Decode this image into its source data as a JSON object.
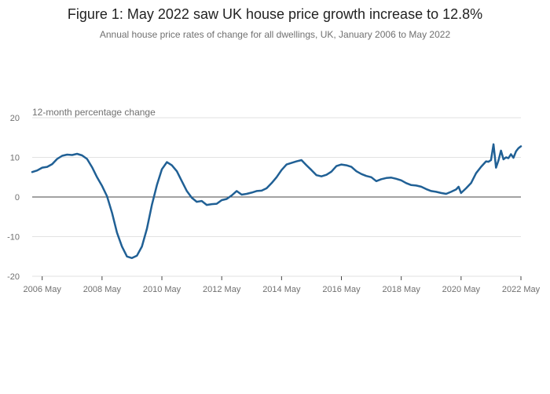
{
  "chart_data": {
    "type": "line",
    "title": "Figure 1: May 2022 saw UK house price growth increase to 12.8%",
    "subtitle": "Annual house price rates of change for all dwellings, UK, January 2006 to May 2022",
    "ylabel": "12-month percentage change",
    "ylim": [
      -20,
      20
    ],
    "yticks": [
      "20",
      "10",
      "0",
      "-10",
      "-20"
    ],
    "xticks": [
      "2006 May",
      "2008 May",
      "2010 May",
      "2012 May",
      "2014 May",
      "2016 May",
      "2018 May",
      "2020 May",
      "2022 May"
    ],
    "xrange": [
      "2006-01",
      "2022-05"
    ],
    "grid": true,
    "line_color": "#206095",
    "series": [
      {
        "points": [
          [
            "2006-01",
            6.3
          ],
          [
            "2006-03",
            6.7
          ],
          [
            "2006-05",
            7.4
          ],
          [
            "2006-07",
            7.6
          ],
          [
            "2006-09",
            8.3
          ],
          [
            "2006-11",
            9.6
          ],
          [
            "2007-01",
            10.4
          ],
          [
            "2007-03",
            10.7
          ],
          [
            "2007-05",
            10.6
          ],
          [
            "2007-07",
            10.9
          ],
          [
            "2007-09",
            10.5
          ],
          [
            "2007-11",
            9.6
          ],
          [
            "2008-01",
            7.5
          ],
          [
            "2008-03",
            5.0
          ],
          [
            "2008-05",
            2.8
          ],
          [
            "2008-07",
            0.2
          ],
          [
            "2008-09",
            -4.0
          ],
          [
            "2008-11",
            -9.0
          ],
          [
            "2009-01",
            -12.5
          ],
          [
            "2009-03",
            -15.0
          ],
          [
            "2009-05",
            -15.4
          ],
          [
            "2009-07",
            -14.8
          ],
          [
            "2009-09",
            -12.5
          ],
          [
            "2009-11",
            -8.0
          ],
          [
            "2010-01",
            -2.0
          ],
          [
            "2010-03",
            3.0
          ],
          [
            "2010-05",
            7.0
          ],
          [
            "2010-07",
            8.8
          ],
          [
            "2010-09",
            8.0
          ],
          [
            "2010-11",
            6.5
          ],
          [
            "2011-01",
            4.0
          ],
          [
            "2011-03",
            1.5
          ],
          [
            "2011-05",
            -0.2
          ],
          [
            "2011-07",
            -1.2
          ],
          [
            "2011-09",
            -1.0
          ],
          [
            "2011-11",
            -2.0
          ],
          [
            "2012-01",
            -1.8
          ],
          [
            "2012-03",
            -1.7
          ],
          [
            "2012-05",
            -0.8
          ],
          [
            "2012-07",
            -0.5
          ],
          [
            "2012-09",
            0.4
          ],
          [
            "2012-11",
            1.5
          ],
          [
            "2013-01",
            0.6
          ],
          [
            "2013-03",
            0.8
          ],
          [
            "2013-05",
            1.1
          ],
          [
            "2013-07",
            1.5
          ],
          [
            "2013-09",
            1.6
          ],
          [
            "2013-11",
            2.2
          ],
          [
            "2014-01",
            3.5
          ],
          [
            "2014-03",
            5.0
          ],
          [
            "2014-05",
            6.8
          ],
          [
            "2014-07",
            8.2
          ],
          [
            "2014-09",
            8.6
          ],
          [
            "2014-11",
            9.0
          ],
          [
            "2015-01",
            9.3
          ],
          [
            "2015-03",
            8.0
          ],
          [
            "2015-05",
            6.8
          ],
          [
            "2015-07",
            5.5
          ],
          [
            "2015-09",
            5.2
          ],
          [
            "2015-11",
            5.6
          ],
          [
            "2016-01",
            6.4
          ],
          [
            "2016-03",
            7.8
          ],
          [
            "2016-05",
            8.2
          ],
          [
            "2016-07",
            8.0
          ],
          [
            "2016-09",
            7.6
          ],
          [
            "2016-11",
            6.5
          ],
          [
            "2017-01",
            5.8
          ],
          [
            "2017-03",
            5.3
          ],
          [
            "2017-05",
            5.0
          ],
          [
            "2017-07",
            4.0
          ],
          [
            "2017-09",
            4.5
          ],
          [
            "2017-11",
            4.8
          ],
          [
            "2018-01",
            4.9
          ],
          [
            "2018-03",
            4.6
          ],
          [
            "2018-05",
            4.2
          ],
          [
            "2018-07",
            3.5
          ],
          [
            "2018-09",
            3.0
          ],
          [
            "2018-11",
            2.9
          ],
          [
            "2019-01",
            2.6
          ],
          [
            "2019-03",
            2.0
          ],
          [
            "2019-05",
            1.5
          ],
          [
            "2019-07",
            1.3
          ],
          [
            "2019-09",
            1.0
          ],
          [
            "2019-11",
            0.8
          ],
          [
            "2020-01",
            1.3
          ],
          [
            "2020-03",
            1.9
          ],
          [
            "2020-04",
            2.6
          ],
          [
            "2020-05",
            1.0
          ],
          [
            "2020-07",
            2.2
          ],
          [
            "2020-09",
            3.5
          ],
          [
            "2020-11",
            6.0
          ],
          [
            "2021-01",
            7.6
          ],
          [
            "2021-03",
            9.0
          ],
          [
            "2021-04",
            8.9
          ],
          [
            "2021-05",
            9.3
          ],
          [
            "2021-06",
            13.3
          ],
          [
            "2021-07",
            7.4
          ],
          [
            "2021-08",
            9.2
          ],
          [
            "2021-09",
            11.7
          ],
          [
            "2021-10",
            9.5
          ],
          [
            "2021-11",
            10.0
          ],
          [
            "2021-12",
            9.8
          ],
          [
            "2022-01",
            10.8
          ],
          [
            "2022-02",
            9.9
          ],
          [
            "2022-03",
            11.5
          ],
          [
            "2022-04",
            12.3
          ],
          [
            "2022-05",
            12.8
          ]
        ]
      }
    ]
  }
}
